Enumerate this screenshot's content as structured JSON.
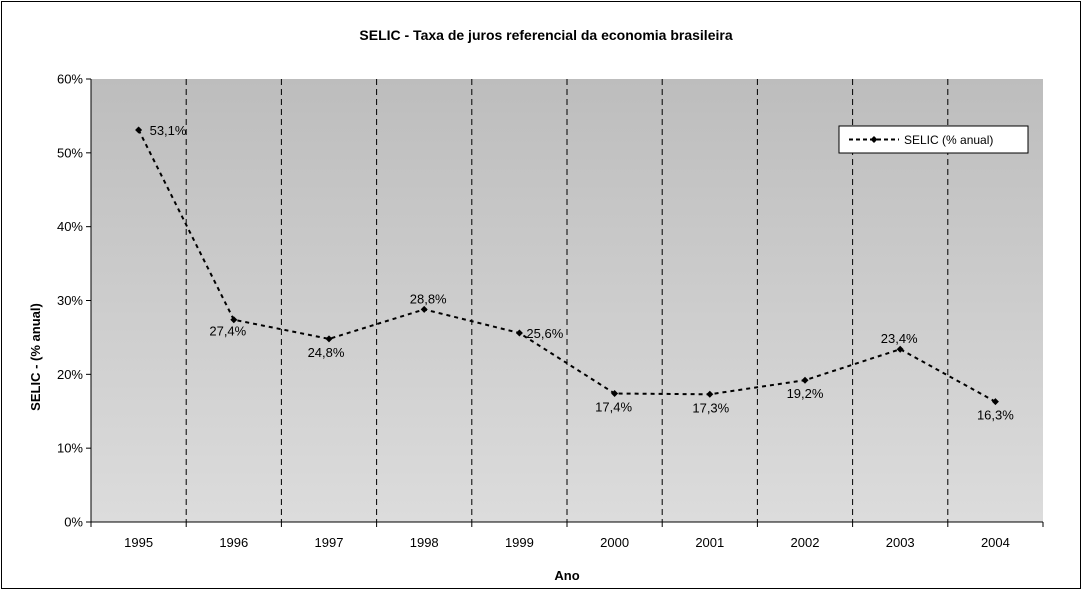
{
  "chart_data": {
    "type": "line",
    "title": "SELIC - Taxa de juros referencial da economia brasileira",
    "xlabel": "Ano",
    "ylabel": "SELIC - (% anual)",
    "ylim": [
      0,
      60
    ],
    "y_ticks": [
      "0%",
      "10%",
      "20%",
      "30%",
      "40%",
      "50%",
      "60%"
    ],
    "categories": [
      "1995",
      "1996",
      "1997",
      "1998",
      "1999",
      "2000",
      "2001",
      "2002",
      "2003",
      "2004"
    ],
    "series": [
      {
        "name": "SELIC (% anual)",
        "values": [
          53.1,
          27.4,
          24.8,
          28.8,
          25.6,
          17.4,
          17.3,
          19.2,
          23.4,
          16.3
        ],
        "labels": [
          "53,1%",
          "27,4%",
          "24,8%",
          "28,8%",
          "25,6%",
          "17,4%",
          "17,3%",
          "19,2%",
          "23,4%",
          "16,3%"
        ],
        "color": "#000000"
      }
    ],
    "grid": "vertical dashed",
    "legend_position": "top-right",
    "plot_background": "gradient-gray"
  }
}
